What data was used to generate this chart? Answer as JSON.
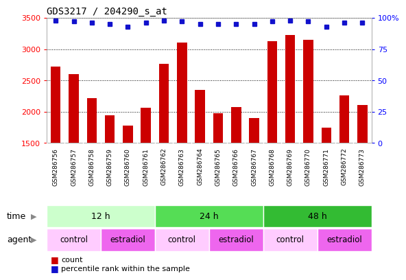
{
  "title": "GDS3217 / 204290_s_at",
  "samples": [
    "GSM286756",
    "GSM286757",
    "GSM286758",
    "GSM286759",
    "GSM286760",
    "GSM286761",
    "GSM286762",
    "GSM286763",
    "GSM286764",
    "GSM286765",
    "GSM286766",
    "GSM286767",
    "GSM286768",
    "GSM286769",
    "GSM286770",
    "GSM286771",
    "GSM286772",
    "GSM286773"
  ],
  "counts": [
    2720,
    2600,
    2220,
    1940,
    1780,
    2060,
    2760,
    3100,
    2350,
    1970,
    2070,
    1900,
    3130,
    3220,
    3150,
    1750,
    2260,
    2110
  ],
  "percentile_ranks": [
    98,
    97,
    96,
    95,
    93,
    96,
    98,
    97,
    95,
    95,
    95,
    95,
    97,
    98,
    97,
    93,
    96,
    96
  ],
  "ylim": [
    1500,
    3500
  ],
  "yticks": [
    1500,
    2000,
    2500,
    3000,
    3500
  ],
  "right_yticks_vals": [
    0,
    25,
    50,
    75,
    100
  ],
  "right_yticks_labels": [
    "0",
    "25",
    "50",
    "75",
    "100%"
  ],
  "bar_color": "#cc0000",
  "dot_color": "#1111cc",
  "time_groups": [
    {
      "label": "12 h",
      "start": 0,
      "end": 6,
      "color": "#ccffcc"
    },
    {
      "label": "24 h",
      "start": 6,
      "end": 12,
      "color": "#55dd55"
    },
    {
      "label": "48 h",
      "start": 12,
      "end": 18,
      "color": "#33bb33"
    }
  ],
  "agent_groups": [
    {
      "label": "control",
      "start": 0,
      "end": 3,
      "color": "#ffccff"
    },
    {
      "label": "estradiol",
      "start": 3,
      "end": 6,
      "color": "#ee66ee"
    },
    {
      "label": "control",
      "start": 6,
      "end": 9,
      "color": "#ffccff"
    },
    {
      "label": "estradiol",
      "start": 9,
      "end": 12,
      "color": "#ee66ee"
    },
    {
      "label": "control",
      "start": 12,
      "end": 15,
      "color": "#ffccff"
    },
    {
      "label": "estradiol",
      "start": 15,
      "end": 18,
      "color": "#ee66ee"
    }
  ],
  "legend_count_label": "count",
  "legend_pct_label": "percentile rank within the sample",
  "xlabel_time": "time",
  "xlabel_agent": "agent",
  "bar_width": 0.55,
  "n": 18
}
